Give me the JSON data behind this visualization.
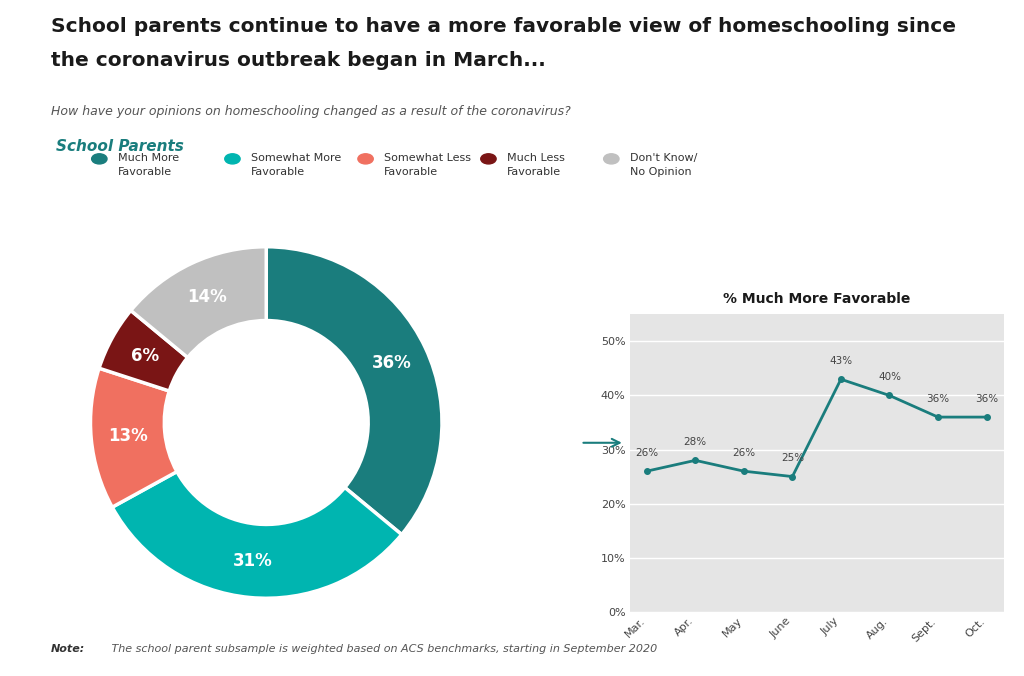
{
  "title_line1": "School parents continue to have a more favorable view of homeschooling since",
  "title_line2": "the coronavirus outbreak began in March...",
  "subtitle": "How have your opinions on homeschooling changed as a result of the coronavirus?",
  "section_label": "School Parents",
  "donut_values": [
    36,
    31,
    13,
    6,
    14
  ],
  "donut_labels": [
    "36%",
    "31%",
    "13%",
    "6%",
    "14%"
  ],
  "donut_colors": [
    "#1a7d7d",
    "#00b5b0",
    "#f07060",
    "#7a1515",
    "#c0c0c0"
  ],
  "legend_labels": [
    "Much More\nFavorable",
    "Somewhat More\nFavorable",
    "Somewhat Less\nFavorable",
    "Much Less\nFavorable",
    "Don't Know/\nNo Opinion"
  ],
  "legend_colors": [
    "#1a7d7d",
    "#00b5b0",
    "#f07060",
    "#7a1515",
    "#c0c0c0"
  ],
  "line_months": [
    "Mar.",
    "Apr.",
    "May",
    "June",
    "July",
    "Aug.",
    "Sept.",
    "Oct."
  ],
  "line_values": [
    26,
    28,
    26,
    25,
    43,
    40,
    36,
    36
  ],
  "line_labels": [
    "26%",
    "28%",
    "26%",
    "25%",
    "43%",
    "40%",
    "36%",
    "36%"
  ],
  "line_title": "% Much More Favorable",
  "line_color": "#1a7d7d",
  "line_bg": "#e5e5e5",
  "note_bold": "Note:",
  "note_rest": " The school parent subsample is weighted based on ACS benchmarks, starting in September 2020",
  "bg_color": "#ffffff"
}
